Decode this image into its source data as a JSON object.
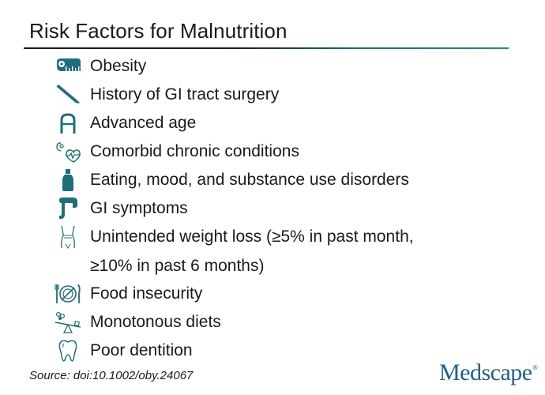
{
  "title": "Risk Factors for Malnutrition",
  "items": [
    {
      "label": "Obesity",
      "icon": "tape-measure-icon"
    },
    {
      "label": "History of GI tract surgery",
      "icon": "scalpel-icon"
    },
    {
      "label": "Advanced age",
      "icon": "walker-icon"
    },
    {
      "label": "Comorbid chronic conditions",
      "icon": "heart-health-icon"
    },
    {
      "label": "Eating, mood, and substance use disorders",
      "icon": "bottle-icon"
    },
    {
      "label": "GI symptoms",
      "icon": "intestine-icon"
    },
    {
      "label": "Unintended weight loss (≥5% in past month,",
      "label_cont": "≥10% in past 6 months)",
      "icon": "body-silhouette-icon"
    },
    {
      "label": "Food insecurity",
      "icon": "empty-plate-icon"
    },
    {
      "label": "Monotonous diets",
      "icon": "seesaw-food-icon"
    },
    {
      "label": "Poor dentition",
      "icon": "tooth-icon"
    }
  ],
  "source": "Source: doi:10.1002/oby.24067",
  "logo": {
    "text": "Medscape",
    "mark": "®"
  },
  "colors": {
    "icon_teal": "#1f6f7a",
    "logo_blue": "#1f5f8b",
    "text": "#1a1a1a"
  }
}
